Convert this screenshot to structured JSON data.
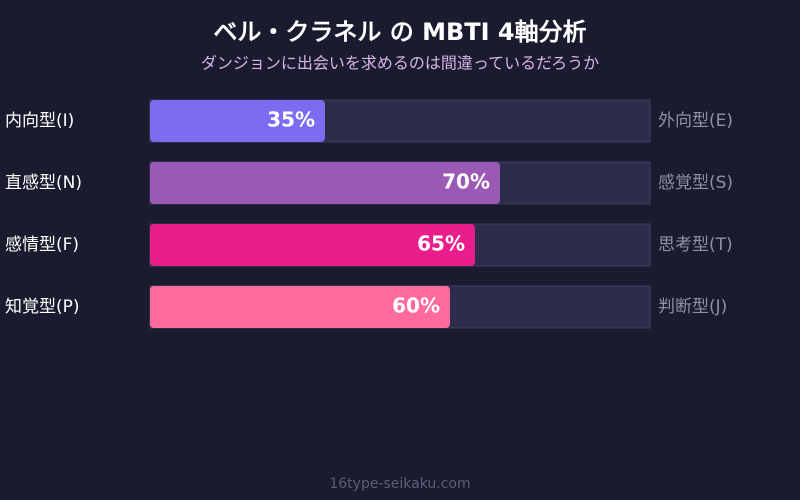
{
  "chart_data": {
    "type": "bar",
    "orientation": "horizontal",
    "title": "ベル・クラネル の MBTI 4軸分析",
    "subtitle": "ダンジョンに出会いを求めるのは間違っているだろうか",
    "categories": [
      "内向型(I)",
      "直感型(N)",
      "感情型(F)",
      "知覚型(P)"
    ],
    "right_labels": [
      "外向型(E)",
      "感覚型(S)",
      "思考型(T)",
      "判断型(J)"
    ],
    "values": [
      35,
      70,
      65,
      60
    ],
    "value_labels": [
      "35%",
      "70%",
      "65%",
      "60%"
    ],
    "colors": [
      "#7b6cf0",
      "#9b59b6",
      "#e91e8c",
      "#ff6b9d"
    ],
    "xlim": [
      0,
      100
    ],
    "footer": "16type-seikaku.com"
  }
}
